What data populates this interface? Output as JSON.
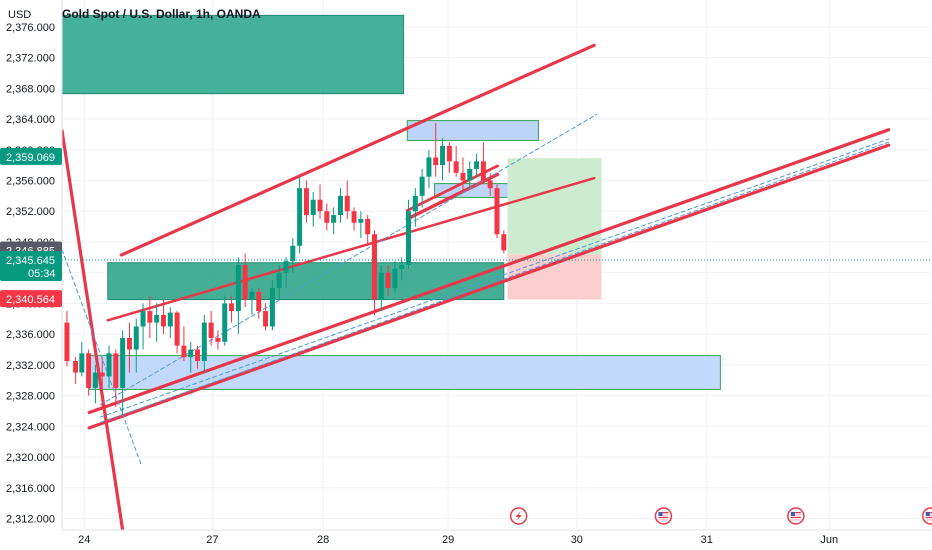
{
  "chart_data": {
    "type": "candlestick",
    "title": "Gold Spot / U.S. Dollar, 1h, OANDA",
    "currency": "USD",
    "ylim": [
      2310.5,
      2379.5
    ],
    "y_ticks": [
      "2,376.000",
      "2,372.000",
      "2,368.000",
      "2,364.000",
      "2,360.000",
      "2,356.000",
      "2,352.000",
      "2,348.000",
      "2,344.000",
      "2,340.000",
      "2,336.000",
      "2,332.000",
      "2,328.000",
      "2,324.000",
      "2,320.000",
      "2,316.000",
      "2,312.000"
    ],
    "y_tick_values": [
      2376,
      2372,
      2368,
      2364,
      2360,
      2356,
      2352,
      2348,
      2344,
      2340,
      2336,
      2332,
      2328,
      2324,
      2320,
      2316,
      2312
    ],
    "x_ticks": [
      {
        "label": "24",
        "t": 0.0
      },
      {
        "label": "27",
        "t": 10.35
      },
      {
        "label": "28",
        "t": 19.3
      },
      {
        "label": "29",
        "t": 29.4
      },
      {
        "label": "30",
        "t": 39.8
      },
      {
        "label": "31",
        "t": 50.3
      },
      {
        "label": "Jun",
        "t": 60.2
      }
    ],
    "xlim": [
      -1.8,
      68.5
    ],
    "price_labels": [
      {
        "name": "high-marker",
        "value": "2,359.069",
        "price": 2359.069,
        "color": "#089981"
      },
      {
        "name": "last-price",
        "value": "2,346.885",
        "price": 2346.885,
        "color": "#555a66"
      },
      {
        "name": "current-price",
        "value": "2,345.645",
        "price": 2345.645,
        "sub": "05:34",
        "color": "#089981"
      },
      {
        "name": "low-marker",
        "value": "2,340.564",
        "price": 2340.564,
        "color": "#f23645"
      }
    ],
    "current_price": 2345.645,
    "candles": [
      [
        -1.4,
        2337.5,
        2339.0,
        2331.8,
        2332.5
      ],
      [
        -0.7,
        2332.5,
        2333.0,
        2329.5,
        2331.0
      ],
      [
        -0.2,
        2331.0,
        2335.0,
        2330.5,
        2333.5
      ],
      [
        0.35,
        2333.5,
        2334.0,
        2328.0,
        2329.0
      ],
      [
        0.9,
        2329.0,
        2332.0,
        2327.0,
        2331.0
      ],
      [
        1.45,
        2331.0,
        2333.0,
        2326.5,
        2330.5
      ],
      [
        2.0,
        2330.5,
        2334.5,
        2329.0,
        2333.5
      ],
      [
        2.55,
        2333.5,
        2334.0,
        2326.5,
        2329.0
      ],
      [
        3.1,
        2329.0,
        2336.5,
        2325.5,
        2335.5
      ],
      [
        3.65,
        2335.5,
        2337.5,
        2331.0,
        2334.0
      ],
      [
        4.2,
        2334.0,
        2338.0,
        2331.0,
        2337.0
      ],
      [
        4.75,
        2337.0,
        2340.0,
        2334.0,
        2339.0
      ],
      [
        5.3,
        2339.0,
        2341.0,
        2335.5,
        2337.5
      ],
      [
        5.85,
        2337.5,
        2340.0,
        2335.0,
        2338.5
      ],
      [
        6.4,
        2338.5,
        2340.5,
        2336.0,
        2337.0
      ],
      [
        6.95,
        2337.0,
        2339.5,
        2335.5,
        2338.8
      ],
      [
        7.5,
        2338.8,
        2339.0,
        2333.5,
        2334.5
      ],
      [
        8.05,
        2334.5,
        2337.0,
        2332.5,
        2333.0
      ],
      [
        8.6,
        2333.0,
        2335.0,
        2331.0,
        2334.0
      ],
      [
        9.15,
        2334.0,
        2334.5,
        2331.5,
        2332.5
      ],
      [
        9.7,
        2332.5,
        2338.5,
        2331.0,
        2337.5
      ],
      [
        10.25,
        2337.5,
        2339.0,
        2334.5,
        2335.5
      ],
      [
        10.8,
        2335.5,
        2336.5,
        2334.0,
        2335.0
      ],
      [
        11.35,
        2335.0,
        2341.0,
        2334.5,
        2340.0
      ],
      [
        11.9,
        2340.0,
        2341.0,
        2337.5,
        2339.0
      ],
      [
        12.45,
        2339.0,
        2346.0,
        2336.0,
        2345.0
      ],
      [
        13.0,
        2345.0,
        2346.5,
        2339.5,
        2340.5
      ],
      [
        13.55,
        2340.5,
        2342.0,
        2338.5,
        2341.5
      ],
      [
        14.1,
        2341.5,
        2342.0,
        2338.0,
        2339.0
      ],
      [
        14.65,
        2339.0,
        2340.0,
        2336.5,
        2337.0
      ],
      [
        15.2,
        2337.0,
        2343.0,
        2336.5,
        2342.0
      ],
      [
        15.75,
        2342.0,
        2345.0,
        2340.5,
        2344.0
      ],
      [
        16.3,
        2344.0,
        2346.0,
        2342.0,
        2345.5
      ],
      [
        16.85,
        2345.5,
        2348.5,
        2344.0,
        2347.5
      ],
      [
        17.4,
        2347.5,
        2356.5,
        2346.5,
        2355.0
      ],
      [
        17.95,
        2355.0,
        2356.0,
        2350.5,
        2351.5
      ],
      [
        18.5,
        2351.5,
        2354.5,
        2350.0,
        2353.5
      ],
      [
        19.05,
        2353.5,
        2355.5,
        2351.0,
        2352.0
      ],
      [
        19.6,
        2352.0,
        2353.0,
        2349.5,
        2350.5
      ],
      [
        20.15,
        2350.5,
        2352.5,
        2349.0,
        2351.5
      ],
      [
        20.7,
        2351.5,
        2355.0,
        2350.5,
        2354.0
      ],
      [
        21.25,
        2354.0,
        2356.0,
        2351.0,
        2352.0
      ],
      [
        21.8,
        2352.0,
        2352.5,
        2349.5,
        2350.5
      ],
      [
        22.35,
        2350.5,
        2352.0,
        2348.5,
        2351.0
      ],
      [
        22.9,
        2351.0,
        2351.5,
        2347.5,
        2349.0
      ],
      [
        23.45,
        2349.0,
        2349.5,
        2338.5,
        2340.5
      ],
      [
        24.0,
        2340.5,
        2345.0,
        2339.0,
        2344.0
      ],
      [
        24.55,
        2344.0,
        2345.0,
        2341.0,
        2342.0
      ],
      [
        25.1,
        2342.0,
        2345.5,
        2341.5,
        2344.5
      ],
      [
        25.65,
        2344.5,
        2346.0,
        2343.0,
        2345.0
      ],
      [
        26.2,
        2345.0,
        2353.5,
        2344.5,
        2352.0
      ],
      [
        26.75,
        2352.0,
        2355.0,
        2350.0,
        2354.0
      ],
      [
        27.3,
        2354.0,
        2357.5,
        2352.5,
        2356.5
      ],
      [
        27.85,
        2356.5,
        2360.0,
        2355.0,
        2359.0
      ],
      [
        28.4,
        2359.0,
        2363.5,
        2356.5,
        2358.0
      ],
      [
        28.95,
        2358.0,
        2361.5,
        2356.0,
        2360.5
      ],
      [
        29.5,
        2360.5,
        2361.0,
        2357.0,
        2358.5
      ],
      [
        30.05,
        2358.5,
        2360.5,
        2356.5,
        2357.0
      ],
      [
        30.6,
        2357.0,
        2359.0,
        2354.5,
        2356.0
      ],
      [
        31.15,
        2356.0,
        2358.5,
        2355.0,
        2357.5
      ],
      [
        31.7,
        2357.5,
        2359.5,
        2356.5,
        2358.5
      ],
      [
        32.25,
        2358.5,
        2361.0,
        2355.5,
        2356.0
      ],
      [
        32.8,
        2356.0,
        2357.0,
        2354.0,
        2355.0
      ],
      [
        33.35,
        2355.0,
        2355.5,
        2348.5,
        2349.0
      ],
      [
        33.9,
        2349.0,
        2349.5,
        2346.5,
        2346.9
      ]
    ],
    "zones": [
      {
        "name": "supply-zone-top",
        "x0": -1.8,
        "x1": 25.8,
        "y0": 2367.3,
        "y1": 2377.5,
        "fill": "#2aa68a",
        "opacity": 0.88,
        "stroke": "#1e8c73"
      },
      {
        "name": "demand-zone-mid",
        "x0": 1.9,
        "x1": 33.9,
        "y0": 2340.5,
        "y1": 2345.3,
        "fill": "#26a083",
        "opacity": 0.85,
        "stroke": "#1e8c73"
      },
      {
        "name": "blue-zone-top",
        "x0": 26.1,
        "x1": 36.7,
        "y0": 2361.2,
        "y1": 2363.8,
        "fill": "#bbd4f8",
        "opacity": 1,
        "stroke": "#2fa84f"
      },
      {
        "name": "blue-zone-small",
        "x0": 28.3,
        "x1": 35.4,
        "y0": 2353.8,
        "y1": 2355.6,
        "fill": "#bbd4f8",
        "opacity": 1,
        "stroke": "#2fa84f"
      },
      {
        "name": "blue-zone-bottom",
        "x0": 0.4,
        "x1": 51.4,
        "y0": 2328.8,
        "y1": 2333.2,
        "fill": "#c3d9fb",
        "opacity": 1,
        "stroke": "#2fa84f"
      },
      {
        "name": "target-zone",
        "x0": 34.2,
        "x1": 41.8,
        "y0": 2346.4,
        "y1": 2358.9,
        "fill": "#cdebcf",
        "opacity": 1,
        "stroke": "none"
      },
      {
        "name": "stop-zone",
        "x0": 34.2,
        "x1": 41.8,
        "y0": 2340.5,
        "y1": 2346.4,
        "fill": "#fccfcf",
        "opacity": 1,
        "stroke": "none"
      }
    ],
    "trendlines": [
      {
        "name": "channel-upper",
        "x0": 3.0,
        "y0": 2346.3,
        "x1": 41.2,
        "y1": 2373.6,
        "color": "#e8374a",
        "width": 3.2,
        "dash": ""
      },
      {
        "name": "channel-lower-outer",
        "x0": 0.4,
        "y0": 2323.8,
        "x1": 65.0,
        "y1": 2360.6,
        "color": "#e8374a",
        "width": 3.2,
        "dash": ""
      },
      {
        "name": "channel-lower-inner",
        "x0": 0.4,
        "y0": 2325.8,
        "x1": 65.0,
        "y1": 2362.6,
        "color": "#e8374a",
        "width": 3.2,
        "dash": ""
      },
      {
        "name": "channel-mid-red",
        "x0": 1.9,
        "y0": 2337.8,
        "x1": 41.2,
        "y1": 2356.3,
        "color": "#e8374a",
        "width": 2.5,
        "dash": ""
      },
      {
        "name": "short-red-channel-a",
        "x0": 26.1,
        "y0": 2351.0,
        "x1": 33.4,
        "y1": 2356.8,
        "color": "#e8374a",
        "width": 3.5,
        "dash": ""
      },
      {
        "name": "short-red-channel-b",
        "x0": 26.1,
        "y0": 2352.1,
        "x1": 33.4,
        "y1": 2357.9,
        "color": "#e8374a",
        "width": 2.8,
        "dash": ""
      },
      {
        "name": "falling-trendline",
        "x0": -1.8,
        "y0": 2362.5,
        "x1": 3.1,
        "y1": 2310.5,
        "color": "#e8374a",
        "width": 3.2,
        "dash": ""
      },
      {
        "name": "dashed-upper",
        "x0": 1.3,
        "y0": 2326.8,
        "x1": 41.4,
        "y1": 2364.6,
        "color": "#4f9ad8",
        "width": 1,
        "dash": "4,3"
      },
      {
        "name": "dashed-lower-a",
        "x0": 1.3,
        "y0": 2324.5,
        "x1": 65.0,
        "y1": 2361.0,
        "color": "#4f9ad8",
        "width": 1,
        "dash": "4,3"
      },
      {
        "name": "dashed-lower-b",
        "x0": 1.3,
        "y0": 2325.2,
        "x1": 65.0,
        "y1": 2361.4,
        "color": "#4f9ad8",
        "width": 1,
        "dash": "4,3"
      },
      {
        "name": "dashed-falling",
        "x0": -1.8,
        "y0": 2347.0,
        "x1": 4.6,
        "y1": 2319.0,
        "color": "#4f9ad8",
        "width": 1,
        "dash": "4,3"
      }
    ],
    "event_markers": [
      {
        "name": "lightning-event-icon",
        "t": 35.1,
        "kind": "flash"
      },
      {
        "name": "us-flag-event-icon-1",
        "t": 46.8,
        "kind": "flag"
      },
      {
        "name": "us-flag-event-icon-2",
        "t": 57.5,
        "kind": "flag"
      },
      {
        "name": "us-flag-event-icon-3",
        "t": 68.4,
        "kind": "flag"
      }
    ],
    "colors": {
      "up": "#089981",
      "down": "#f23645",
      "grid": "#f0f3fa",
      "axis_text": "#131722",
      "current_line": "#089981"
    }
  }
}
